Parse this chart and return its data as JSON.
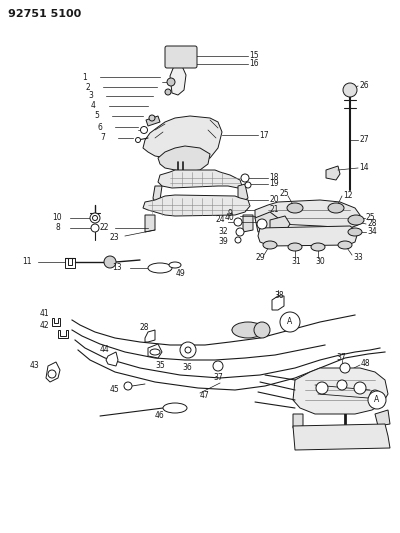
{
  "title": "92751 5100",
  "bg_color": "#ffffff",
  "line_color": "#1a1a1a",
  "title_fontsize": 9,
  "fig_width": 4.0,
  "fig_height": 5.33,
  "dpi": 100
}
